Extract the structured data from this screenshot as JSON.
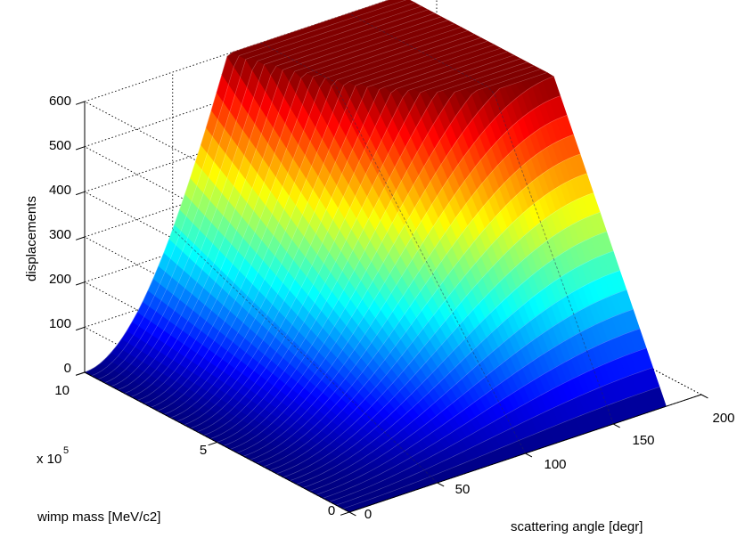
{
  "chart_data": {
    "type": "surface",
    "title": "",
    "zlabel": "displacements",
    "ylabel": "wimp mass [MeV/c2]",
    "xlabel": "scattering angle [degr]",
    "y_exponent_label": "x 10",
    "y_exponent_power": "5",
    "x_range": [
      0,
      200
    ],
    "y_range": [
      0,
      10
    ],
    "z_range": [
      0,
      600
    ],
    "x_ticks": [
      "0",
      "50",
      "100",
      "150",
      "200"
    ],
    "y_ticks": [
      "0",
      "5",
      "10"
    ],
    "z_ticks": [
      "0",
      "100",
      "200",
      "300",
      "400",
      "500",
      "600"
    ],
    "surface_x_max": 180,
    "surface_y_max": 10,
    "z_max": 600,
    "model": "z = min(600, k * y * sin^2(x/2)), saturating at 600 for large y and x",
    "colormap": "jet",
    "grid": true,
    "box": "dotted"
  }
}
